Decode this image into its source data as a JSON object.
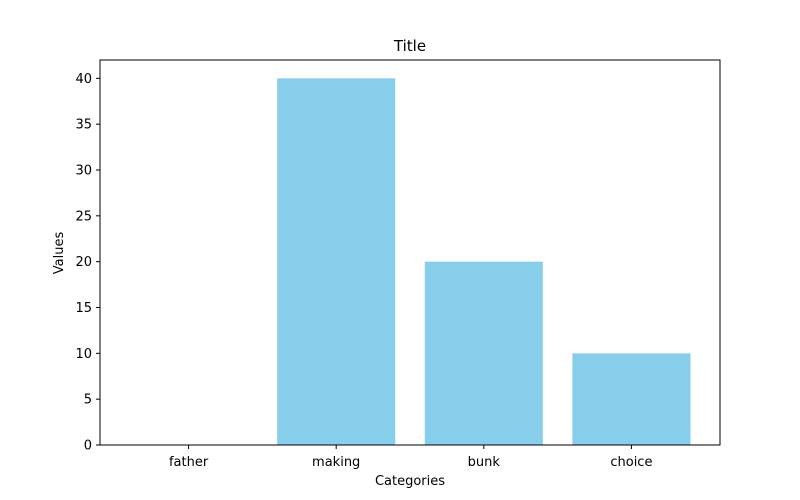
{
  "chart_data": {
    "type": "bar",
    "title": "Title",
    "xlabel": "Categories",
    "ylabel": "Values",
    "categories": [
      "father",
      "making",
      "bunk",
      "choice"
    ],
    "values": [
      0,
      40,
      20,
      10
    ],
    "ylim": [
      0,
      42
    ],
    "yticks": [
      0,
      5,
      10,
      15,
      20,
      25,
      30,
      35,
      40
    ],
    "bar_color": "#87CEEB",
    "grid": false,
    "legend": "none"
  }
}
